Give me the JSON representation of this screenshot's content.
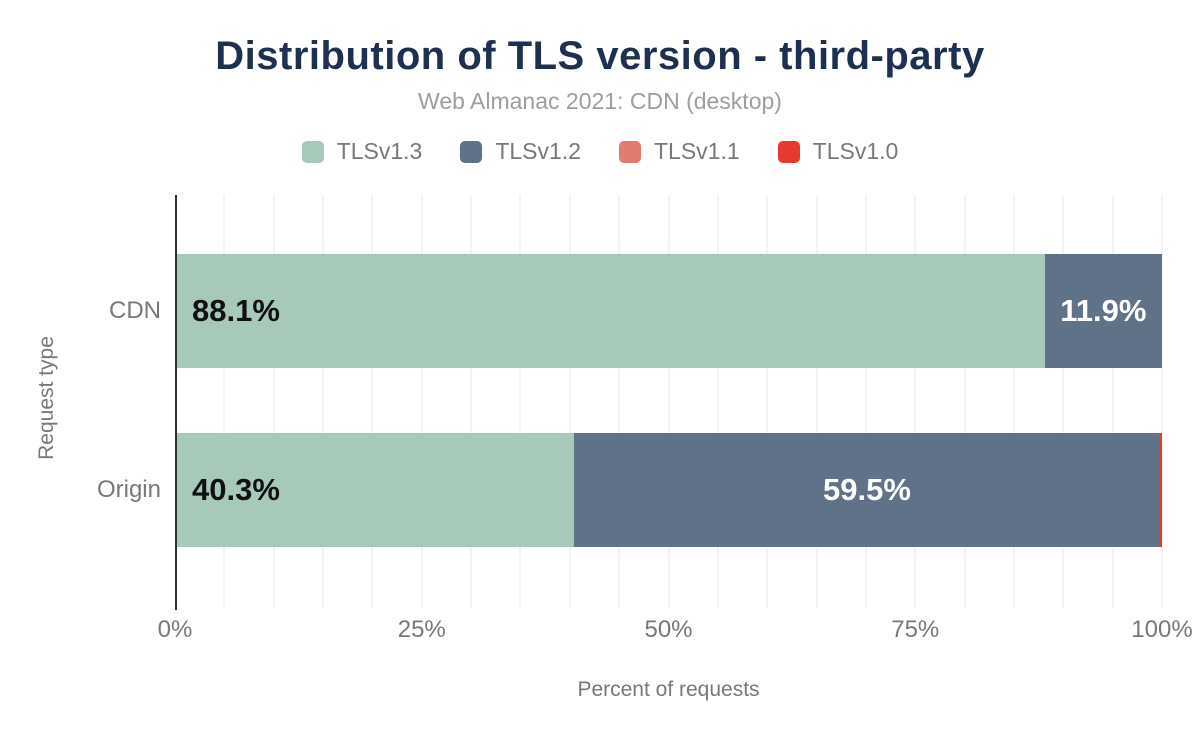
{
  "chart_data": {
    "type": "bar",
    "stacked": true,
    "orientation": "horizontal",
    "title": "Distribution of TLS version - third-party",
    "subtitle": "Web Almanac 2021: CDN (desktop)",
    "xlabel": "Percent of requests",
    "ylabel": "Request type",
    "xlim": [
      0,
      100
    ],
    "x_ticks": [
      {
        "label": "0%",
        "value": 0
      },
      {
        "label": "25%",
        "value": 25
      },
      {
        "label": "50%",
        "value": 50
      },
      {
        "label": "75%",
        "value": 75
      },
      {
        "label": "100%",
        "value": 100
      }
    ],
    "grid": true,
    "grid_interval_percent": 5,
    "legend_position": "top",
    "categories": [
      "CDN",
      "Origin"
    ],
    "series": [
      {
        "name": "TLSv1.3",
        "color": "#a7c9ba",
        "values": [
          88.1,
          40.3
        ],
        "labels": [
          "88.1%",
          "40.3%"
        ],
        "label_color": "#111111",
        "label_align": "left"
      },
      {
        "name": "TLSv1.2",
        "color": "#5f7287",
        "values": [
          11.9,
          59.5
        ],
        "labels": [
          "11.9%",
          "59.5%"
        ],
        "label_color": "#ffffff",
        "label_align": "center"
      },
      {
        "name": "TLSv1.1",
        "color": "#e07b70",
        "values": [
          0,
          0
        ],
        "labels": [
          "",
          ""
        ],
        "label_color": "#ffffff",
        "label_align": "center"
      },
      {
        "name": "TLSv1.0",
        "color": "#e8392e",
        "values": [
          0,
          0.2
        ],
        "labels": [
          "",
          ""
        ],
        "label_color": "#ffffff",
        "label_align": "center"
      }
    ]
  },
  "colors": {
    "title": "#1e3050",
    "subtitle": "#9e9e9e",
    "axis_text": "#75787d",
    "gridline": "#f4f4f4",
    "axis_line": "#2f2f2f",
    "background": "#ffffff"
  }
}
